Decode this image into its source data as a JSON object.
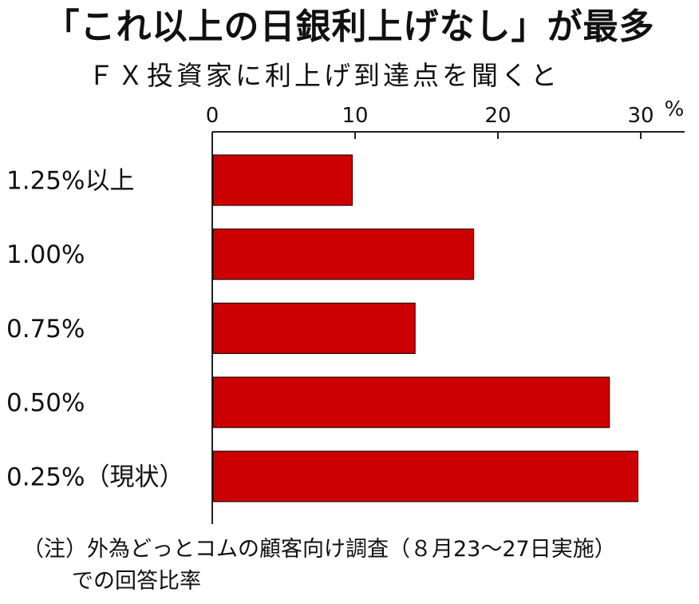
{
  "title": "「これ以上の日銀利上げなし」が最多",
  "subtitle": "ＦＸ投資家に利上げ到達点を聞くと",
  "note": {
    "line1": "（注）外為どっとコムの顧客向け調査（８月23〜27日実施）",
    "line2": "での回答比率"
  },
  "colors": {
    "bar": "#cc0000",
    "axis": "#222222",
    "text": "#111111"
  },
  "chart_data": {
    "type": "bar",
    "orientation": "horizontal",
    "categories": [
      "1.25%以上",
      "1.00%",
      "0.75%",
      "0.50%",
      "0.25%（現状）"
    ],
    "values": [
      9.8,
      18.3,
      14.2,
      27.8,
      29.8
    ],
    "xlim": [
      0,
      33
    ],
    "xticks": [
      0,
      10,
      20,
      30
    ],
    "unit_label": "%",
    "grid": false,
    "legend": "none"
  }
}
